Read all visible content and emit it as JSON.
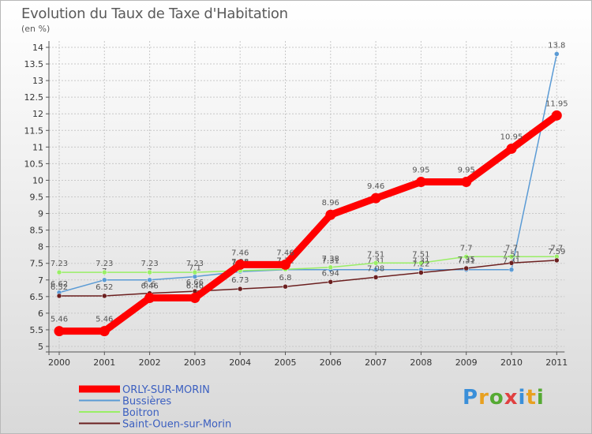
{
  "chart_data": {
    "type": "line",
    "title": "Evolution du Taux de Taxe d'Habitation",
    "ylabel": "(en %)",
    "xlabel": "",
    "ylim": [
      5,
      14
    ],
    "yticks": [
      "5",
      "5.5",
      "6",
      "6.5",
      "7",
      "7.5",
      "8",
      "8.5",
      "9",
      "9.5",
      "10",
      "10.5",
      "11",
      "11.5",
      "12",
      "12.5",
      "13",
      "13.5",
      "14"
    ],
    "categories": [
      "2000",
      "2001",
      "2002",
      "2003",
      "2004",
      "2005",
      "2006",
      "2007",
      "2008",
      "2009",
      "2010",
      "2011"
    ],
    "series": [
      {
        "name": "ORLY-SUR-MORIN",
        "color": "#ff0000",
        "values": [
          5.46,
          5.46,
          6.46,
          6.46,
          7.46,
          7.46,
          8.96,
          9.46,
          9.95,
          9.95,
          10.95,
          11.95
        ],
        "labels": [
          "5.46",
          "5.46",
          "6.46",
          "6.46",
          "7.46",
          "7.46",
          "8.96",
          "9.46",
          "9.95",
          "9.95",
          "10.95",
          "11.95"
        ]
      },
      {
        "name": "Bussières",
        "color": "#5b9bd5",
        "values": [
          6.62,
          7.0,
          7.0,
          7.1,
          7.25,
          7.31,
          7.31,
          7.31,
          7.31,
          7.31,
          7.31,
          13.8
        ],
        "labels": [
          "6.62",
          "7",
          "7",
          "7.1",
          "7.25",
          "7.31",
          "7.31",
          "7.31",
          "7.31",
          "7.31",
          "7.31",
          "13.8"
        ]
      },
      {
        "name": "Boitron",
        "color": "#99ee66",
        "values": [
          7.23,
          7.23,
          7.23,
          7.23,
          7.28,
          7.32,
          7.38,
          7.51,
          7.51,
          7.7,
          7.7,
          7.7
        ],
        "labels": [
          "7.23",
          "7.23",
          "7.23",
          "7.23",
          "7.28",
          "7.32",
          "7.38",
          "7.51",
          "7.51",
          "7.7",
          "7.7",
          "7.7"
        ]
      },
      {
        "name": "Saint-Ouen-sur-Morin",
        "color": "#6b1f1f",
        "values": [
          6.52,
          6.52,
          6.6,
          6.66,
          6.73,
          6.8,
          6.94,
          7.08,
          7.22,
          7.35,
          7.51,
          7.59
        ],
        "labels": [
          "6.52",
          "6.52",
          "6.6",
          "6.66",
          "6.73",
          "6.8",
          "6.94",
          "7.08",
          "7.22",
          "7.35",
          "7.51",
          "7.59"
        ]
      }
    ],
    "legend": {
      "position": "bottom-left"
    }
  },
  "branding": {
    "logo_text": "Proxiti"
  }
}
